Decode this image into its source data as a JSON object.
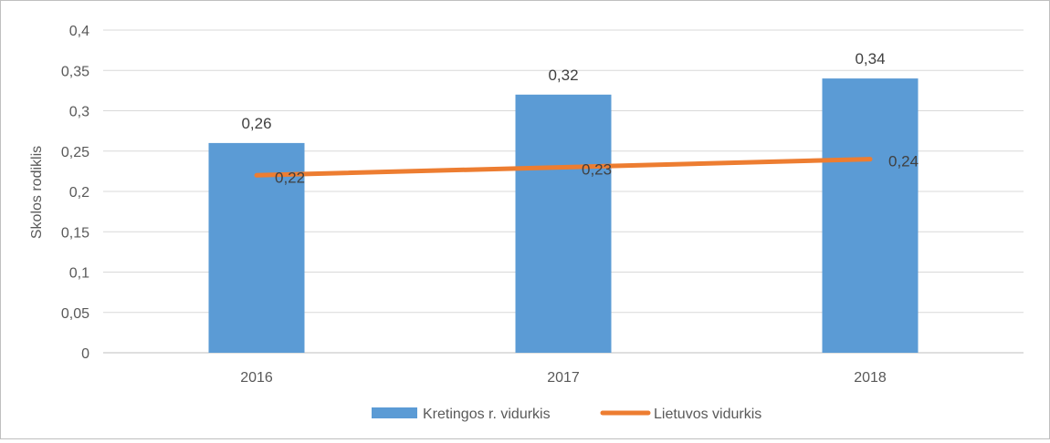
{
  "chart_data": {
    "type": "bar",
    "categories": [
      "2016",
      "2017",
      "2018"
    ],
    "ylabel": "Skolos rodiklis",
    "ylim": [
      0,
      0.4
    ],
    "yticks": [
      "0",
      "0,05",
      "0,1",
      "0,15",
      "0,2",
      "0,25",
      "0,3",
      "0,35",
      "0,4"
    ],
    "grid": true,
    "legend_position": "bottom",
    "series": [
      {
        "name": "Kretingos r. vidurkis",
        "type": "bar",
        "color": "#5b9bd5",
        "values": [
          0.26,
          0.32,
          0.34
        ],
        "labels": [
          "0,26",
          "0,32",
          "0,34"
        ]
      },
      {
        "name": "Lietuvos vidurkis",
        "type": "line",
        "color": "#ed7d31",
        "values": [
          0.22,
          0.23,
          0.24
        ],
        "labels": [
          "0,22",
          "0,23",
          "0,24"
        ]
      }
    ]
  }
}
